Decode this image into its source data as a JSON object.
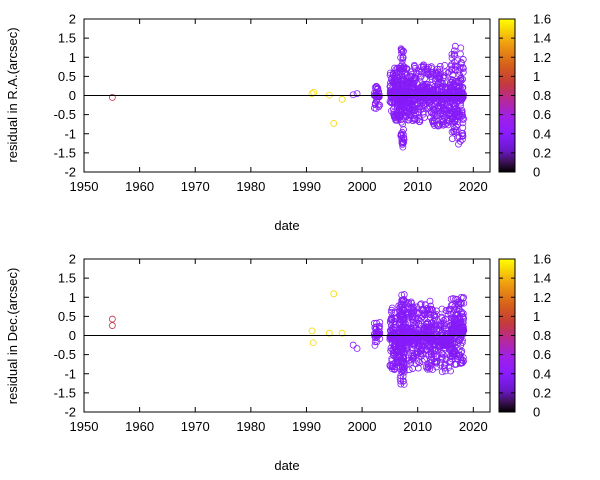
{
  "chart_data": [
    {
      "type": "scatter",
      "xlabel": "date",
      "ylabel": "residual in R.A.(arcsec)",
      "xlim": [
        1950,
        2023
      ],
      "ylim": [
        -2,
        2
      ],
      "x_ticks": [
        "1950",
        "1960",
        "1970",
        "1980",
        "1990",
        "2000",
        "2010",
        "2020"
      ],
      "y_ticks": [
        "-2",
        "-1.5",
        "-1",
        "-0.5",
        "0",
        "0.5",
        "1",
        "1.5",
        "2"
      ],
      "zero_line": true,
      "colorbar": {
        "range": [
          0,
          1.6
        ],
        "ticks": [
          "0",
          "0.2",
          "0.4",
          "0.6",
          "0.8",
          "1",
          "1.2",
          "1.4",
          "1.6"
        ],
        "placement": "right"
      },
      "marker": "open-circle",
      "points": [
        {
          "x": 1955.1,
          "y": -0.05,
          "c": 0.9
        },
        {
          "x": 1991.0,
          "y": 0.05,
          "c": 1.5
        },
        {
          "x": 1991.3,
          "y": 0.08,
          "c": 1.5
        },
        {
          "x": 1994.1,
          "y": 0.01,
          "c": 1.5
        },
        {
          "x": 1994.9,
          "y": -0.73,
          "c": 1.5
        },
        {
          "x": 1996.4,
          "y": -0.1,
          "c": 1.5
        },
        {
          "x": 1998.4,
          "y": 0.02,
          "c": 0.4
        },
        {
          "x": 1999.1,
          "y": 0.05,
          "c": 0.4
        }
      ],
      "dense_clusters": [
        {
          "x_range": [
            2002.2,
            2003.2
          ],
          "y_range": [
            -0.35,
            0.3
          ],
          "count": 40,
          "c": 0.38
        },
        {
          "x_range": [
            2005.0,
            2006.8
          ],
          "y_range": [
            -0.65,
            0.75
          ],
          "count": 160,
          "c": 0.38
        },
        {
          "x_range": [
            2006.8,
            2007.6
          ],
          "y_range": [
            -1.35,
            1.25
          ],
          "count": 160,
          "c": 0.38
        },
        {
          "x_range": [
            2007.6,
            2012.5
          ],
          "y_range": [
            -0.7,
            0.8
          ],
          "count": 340,
          "c": 0.38
        },
        {
          "x_range": [
            2012.5,
            2016.0
          ],
          "y_range": [
            -0.8,
            0.8
          ],
          "count": 220,
          "c": 0.38
        },
        {
          "x_range": [
            2016.0,
            2018.3
          ],
          "y_range": [
            -1.4,
            1.3
          ],
          "count": 200,
          "c": 0.38
        }
      ]
    },
    {
      "type": "scatter",
      "xlabel": "date",
      "ylabel": "residual in Dec.(arcsec)",
      "xlim": [
        1950,
        2023
      ],
      "ylim": [
        -2,
        2
      ],
      "x_ticks": [
        "1950",
        "1960",
        "1970",
        "1980",
        "1990",
        "2000",
        "2010",
        "2020"
      ],
      "y_ticks": [
        "-2",
        "-1.5",
        "-1",
        "-0.5",
        "0",
        "0.5",
        "1",
        "1.5",
        "2"
      ],
      "zero_line": true,
      "colorbar": {
        "range": [
          0,
          1.6
        ],
        "ticks": [
          "0",
          "0.2",
          "0.4",
          "0.6",
          "0.8",
          "1",
          "1.2",
          "1.4",
          "1.6"
        ],
        "placement": "right"
      },
      "marker": "open-circle",
      "points": [
        {
          "x": 1955.1,
          "y": 0.43,
          "c": 0.9
        },
        {
          "x": 1955.1,
          "y": 0.26,
          "c": 0.9
        },
        {
          "x": 1991.0,
          "y": 0.12,
          "c": 1.5
        },
        {
          "x": 1991.2,
          "y": -0.19,
          "c": 1.5
        },
        {
          "x": 1994.1,
          "y": 0.06,
          "c": 1.5
        },
        {
          "x": 1994.9,
          "y": 1.09,
          "c": 1.5
        },
        {
          "x": 1996.4,
          "y": 0.06,
          "c": 1.5
        },
        {
          "x": 1998.4,
          "y": -0.25,
          "c": 0.4
        },
        {
          "x": 1999.1,
          "y": -0.34,
          "c": 0.4
        }
      ],
      "dense_clusters": [
        {
          "x_range": [
            2002.2,
            2003.2
          ],
          "y_range": [
            -0.3,
            0.35
          ],
          "count": 40,
          "c": 0.38
        },
        {
          "x_range": [
            2005.0,
            2006.8
          ],
          "y_range": [
            -0.9,
            0.8
          ],
          "count": 160,
          "c": 0.38
        },
        {
          "x_range": [
            2006.8,
            2007.6
          ],
          "y_range": [
            -1.35,
            1.1
          ],
          "count": 160,
          "c": 0.38
        },
        {
          "x_range": [
            2007.6,
            2012.5
          ],
          "y_range": [
            -0.9,
            0.9
          ],
          "count": 340,
          "c": 0.38
        },
        {
          "x_range": [
            2012.5,
            2016.0
          ],
          "y_range": [
            -1.0,
            0.7
          ],
          "count": 220,
          "c": 0.38
        },
        {
          "x_range": [
            2016.0,
            2018.3
          ],
          "y_range": [
            -0.8,
            1.05
          ],
          "count": 200,
          "c": 0.38
        }
      ]
    }
  ]
}
